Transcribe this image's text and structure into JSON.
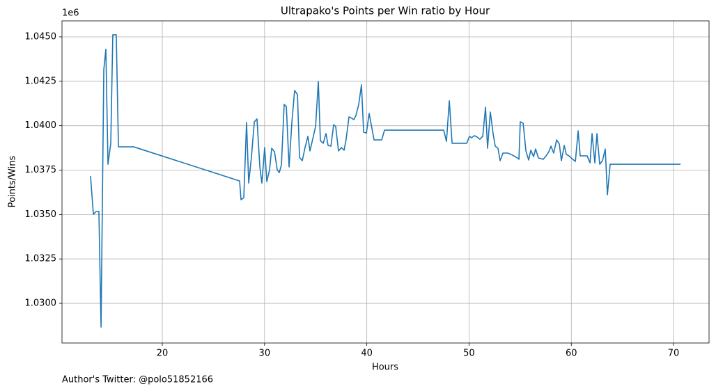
{
  "chart_data": {
    "type": "line",
    "title": "Ultrapako's Points per Win ratio by Hour",
    "xlabel": "Hours",
    "ylabel": "Points/Wins",
    "y_offset_label": "1e6",
    "footnote": "Author's Twitter: @polo51852166",
    "color": "#1f77b4",
    "grid": true,
    "xlim": [
      10.19,
      73.47
    ],
    "ylim": [
      1.02777,
      1.0459
    ],
    "xticks": [
      20,
      30,
      40,
      50,
      60,
      70
    ],
    "yticks": [
      {
        "value": 1.03,
        "label": "1.0300"
      },
      {
        "value": 1.0325,
        "label": "1.0325"
      },
      {
        "value": 1.035,
        "label": "1.0350"
      },
      {
        "value": 1.0375,
        "label": "1.0375"
      },
      {
        "value": 1.04,
        "label": "1.0400"
      },
      {
        "value": 1.0425,
        "label": "1.0425"
      },
      {
        "value": 1.045,
        "label": "1.0450"
      }
    ],
    "x": [
      12.98,
      13.26,
      13.53,
      13.8,
      14.01,
      14.28,
      14.48,
      14.69,
      14.96,
      15.16,
      15.5,
      15.71,
      17.21,
      27.56,
      27.7,
      27.97,
      28.24,
      28.45,
      28.72,
      29.0,
      29.26,
      29.54,
      29.74,
      30.01,
      30.22,
      30.49,
      30.7,
      30.97,
      31.24,
      31.44,
      31.65,
      31.92,
      32.13,
      32.4,
      32.67,
      32.94,
      33.22,
      33.42,
      33.69,
      33.96,
      34.24,
      34.44,
      34.71,
      34.99,
      35.26,
      35.46,
      35.74,
      36.01,
      36.21,
      36.49,
      36.76,
      36.96,
      37.23,
      37.51,
      37.78,
      37.98,
      38.26,
      38.53,
      38.73,
      38.94,
      39.21,
      39.48,
      39.69,
      39.96,
      40.23,
      40.71,
      41.46,
      41.73,
      47.52,
      47.79,
      48.07,
      48.34,
      49.77,
      50.04,
      50.25,
      50.52,
      50.79,
      51.06,
      51.34,
      51.61,
      51.81,
      52.08,
      52.36,
      52.56,
      52.83,
      53.04,
      53.31,
      53.79,
      54.26,
      54.74,
      54.88,
      55.01,
      55.29,
      55.56,
      55.83,
      56.04,
      56.31,
      56.51,
      56.78,
      57.26,
      57.53,
      57.81,
      58.01,
      58.28,
      58.56,
      58.83,
      59.03,
      59.31,
      59.51,
      59.78,
      60.05,
      60.4,
      60.67,
      60.87,
      61.55,
      61.83,
      62.03,
      62.3,
      62.51,
      62.78,
      63.05,
      63.32,
      63.53,
      63.8,
      70.68
    ],
    "values": [
      1.03717,
      1.03501,
      1.03517,
      1.03517,
      1.02867,
      1.04316,
      1.0443,
      1.03783,
      1.03901,
      1.04512,
      1.04512,
      1.03881,
      1.03881,
      1.03689,
      1.03583,
      1.03595,
      1.04018,
      1.03677,
      1.03826,
      1.04022,
      1.04038,
      1.03768,
      1.03677,
      1.03877,
      1.03685,
      1.03752,
      1.03873,
      1.03854,
      1.03752,
      1.03736,
      1.03779,
      1.0412,
      1.04108,
      1.03768,
      1.04018,
      1.04198,
      1.04175,
      1.03822,
      1.03803,
      1.03877,
      1.0394,
      1.03858,
      1.03924,
      1.03995,
      1.04249,
      1.03916,
      1.03901,
      1.03956,
      1.03889,
      1.03885,
      1.04006,
      1.03995,
      1.03858,
      1.03877,
      1.03862,
      1.03924,
      1.0405,
      1.04042,
      1.04034,
      1.04058,
      1.0412,
      1.0423,
      1.03963,
      1.03959,
      1.04069,
      1.0392,
      1.0392,
      1.03975,
      1.03975,
      1.03912,
      1.0414,
      1.03901,
      1.03901,
      1.0394,
      1.03932,
      1.03944,
      1.03936,
      1.03924,
      1.0394,
      1.04104,
      1.03873,
      1.04077,
      1.03952,
      1.03885,
      1.03873,
      1.03803,
      1.03846,
      1.03846,
      1.03834,
      1.03818,
      1.03811,
      1.04022,
      1.04014,
      1.03858,
      1.03807,
      1.03862,
      1.03826,
      1.03869,
      1.03818,
      1.03811,
      1.0383,
      1.03854,
      1.03885,
      1.03846,
      1.0392,
      1.03897,
      1.03803,
      1.03889,
      1.03838,
      1.0383,
      1.03815,
      1.03799,
      1.03971,
      1.0383,
      1.0383,
      1.03791,
      1.03956,
      1.03791,
      1.03956,
      1.03783,
      1.03803,
      1.03869,
      1.03611,
      1.03783,
      1.03783
    ]
  }
}
